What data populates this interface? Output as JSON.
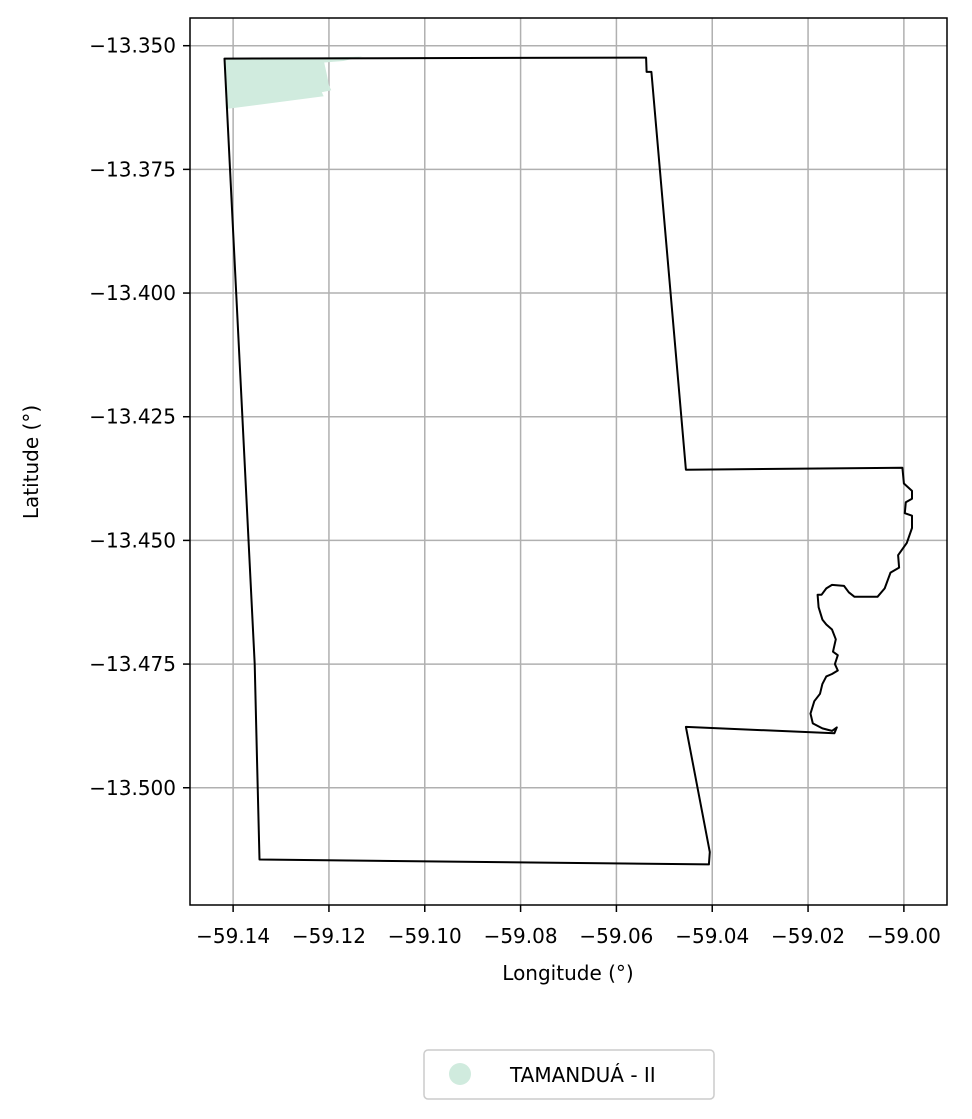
{
  "chart_data": {
    "type": "map",
    "xlabel": "Longitude (°)",
    "ylabel": "Latitude (°)",
    "xlim": [
      -59.149,
      -58.991
    ],
    "ylim": [
      -13.5237,
      -13.3444
    ],
    "grid": true,
    "x_ticks": [
      -59.14,
      -59.12,
      -59.1,
      -59.08,
      -59.06,
      -59.04,
      -59.02,
      -59.0
    ],
    "x_tick_labels": [
      "−59.14",
      "−59.12",
      "−59.10",
      "−59.08",
      "−59.06",
      "−59.04",
      "−59.02",
      "−59.00"
    ],
    "y_ticks": [
      -13.35,
      -13.375,
      -13.4,
      -13.425,
      -13.45,
      -13.475,
      -13.5
    ],
    "y_tick_labels": [
      "−13.350",
      "−13.375",
      "−13.400",
      "−13.425",
      "−13.450",
      "−13.475",
      "−13.500"
    ],
    "boundary": {
      "stroke": "#000000",
      "coords": [
        [
          -59.1418,
          -13.3526
        ],
        [
          -59.0538,
          -13.3524
        ],
        [
          -59.0537,
          -13.3553
        ],
        [
          -59.0527,
          -13.3553
        ],
        [
          -59.0455,
          -13.4357
        ],
        [
          -59.0003,
          -13.4353
        ],
        [
          -59.0,
          -13.4385
        ],
        [
          -58.9983,
          -13.44
        ],
        [
          -58.9983,
          -13.4416
        ],
        [
          -58.9996,
          -13.4423
        ],
        [
          -58.9998,
          -13.4445
        ],
        [
          -58.9983,
          -13.445
        ],
        [
          -58.9983,
          -13.4475
        ],
        [
          -58.9994,
          -13.4505
        ],
        [
          -59.0012,
          -13.453
        ],
        [
          -59.001,
          -13.4555
        ],
        [
          -59.0028,
          -13.4565
        ],
        [
          -59.004,
          -13.4597
        ],
        [
          -59.0055,
          -13.4614
        ],
        [
          -59.0103,
          -13.4614
        ],
        [
          -59.0115,
          -13.4605
        ],
        [
          -59.0125,
          -13.4592
        ],
        [
          -59.015,
          -13.459
        ],
        [
          -59.0162,
          -13.4597
        ],
        [
          -59.0172,
          -13.461
        ],
        [
          -59.018,
          -13.461
        ],
        [
          -59.0178,
          -13.4635
        ],
        [
          -59.017,
          -13.466
        ],
        [
          -59.0162,
          -13.467
        ],
        [
          -59.015,
          -13.468
        ],
        [
          -59.0142,
          -13.47
        ],
        [
          -59.0148,
          -13.4725
        ],
        [
          -59.0138,
          -13.4732
        ],
        [
          -59.0144,
          -13.475
        ],
        [
          -59.0138,
          -13.4763
        ],
        [
          -59.015,
          -13.477
        ],
        [
          -59.0162,
          -13.4775
        ],
        [
          -59.017,
          -13.479
        ],
        [
          -59.0175,
          -13.481
        ],
        [
          -59.0187,
          -13.4825
        ],
        [
          -59.0195,
          -13.485
        ],
        [
          -59.019,
          -13.487
        ],
        [
          -59.017,
          -13.488
        ],
        [
          -59.015,
          -13.4885
        ],
        [
          -59.014,
          -13.4878
        ],
        [
          -59.0145,
          -13.489
        ],
        [
          -59.0455,
          -13.4877
        ],
        [
          -59.0405,
          -13.513
        ],
        [
          -59.0407,
          -13.5155
        ],
        [
          -59.1345,
          -13.5145
        ],
        [
          -59.135,
          -13.495
        ],
        [
          -59.1355,
          -13.475
        ],
        [
          -59.1418,
          -13.3526
        ]
      ]
    },
    "regions": [
      {
        "name": "TAMANDUÁ - II",
        "color": "#d0ebde",
        "coords": [
          [
            -59.1418,
            -13.3528
          ],
          [
            -59.113,
            -13.3522
          ],
          [
            -59.117,
            -13.3531
          ],
          [
            -59.121,
            -13.3534
          ],
          [
            -59.1205,
            -13.3555
          ],
          [
            -59.12,
            -13.358
          ],
          [
            -59.1195,
            -13.359
          ],
          [
            -59.1215,
            -13.3594
          ],
          [
            -59.1211,
            -13.3602
          ],
          [
            -59.1415,
            -13.3628
          ]
        ]
      }
    ],
    "legend": {
      "placement": "bottom-center",
      "entries": [
        {
          "label": "TAMANDUÁ - II",
          "color": "#d0ebde",
          "marker": "circle"
        }
      ]
    }
  }
}
